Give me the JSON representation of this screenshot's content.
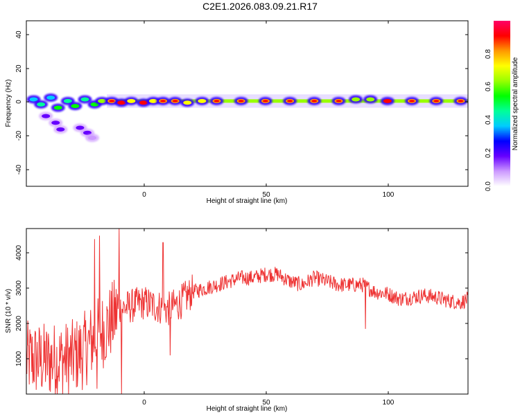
{
  "title": "C2E1.2026.083.09.21.R17",
  "chart_data": [
    {
      "type": "heatmap",
      "xlabel": "Height of straight line (km)",
      "ylabel": "Frequency (Hz)",
      "xlim": [
        -48,
        133
      ],
      "ylim": [
        -50,
        49
      ],
      "xticks": [
        "0",
        "50",
        "100"
      ],
      "yticks": [
        "40",
        "20",
        "0",
        "-20",
        "-40"
      ],
      "grid": false,
      "colorbar": {
        "label": "Normalized spectral amplitude",
        "range": [
          0,
          1
        ],
        "ticks": [
          "0.0",
          "0.2",
          "0.4",
          "0.6",
          "0.8"
        ],
        "colors": [
          "#ffffff",
          "#cc99ff",
          "#6600ff",
          "#0000ff",
          "#00ccff",
          "#00ff99",
          "#00ff00",
          "#99ff00",
          "#ffff00",
          "#ff9900",
          "#ff0000",
          "#ff0066"
        ]
      },
      "blobs": [
        {
          "x": -45,
          "y": 2,
          "v": 0.35
        },
        {
          "x": -42,
          "y": -1,
          "v": 0.45
        },
        {
          "x": -38,
          "y": 3,
          "v": 0.4
        },
        {
          "x": -35,
          "y": -3,
          "v": 0.5
        },
        {
          "x": -31,
          "y": 1,
          "v": 0.45
        },
        {
          "x": -28,
          "y": -2,
          "v": 0.55
        },
        {
          "x": -24,
          "y": 2,
          "v": 0.45
        },
        {
          "x": -20,
          "y": -1,
          "v": 0.55
        },
        {
          "x": -17,
          "y": 1,
          "v": 0.6
        },
        {
          "x": -40,
          "y": -8,
          "v": 0.2
        },
        {
          "x": -36,
          "y": -12,
          "v": 0.18
        },
        {
          "x": -34,
          "y": -16,
          "v": 0.2
        },
        {
          "x": -26,
          "y": -15,
          "v": 0.15
        },
        {
          "x": -23,
          "y": -18,
          "v": 0.15
        },
        {
          "x": -21,
          "y": -21,
          "v": 0.12
        },
        {
          "x": -13,
          "y": 1,
          "v": 0.8
        },
        {
          "x": -9,
          "y": 0,
          "v": 0.95
        },
        {
          "x": -5,
          "y": 1,
          "v": 0.7
        },
        {
          "x": 0,
          "y": 0,
          "v": 0.9
        },
        {
          "x": 4,
          "y": 1,
          "v": 0.7
        },
        {
          "x": 8,
          "y": 1,
          "v": 0.85
        },
        {
          "x": 13,
          "y": 1,
          "v": 0.85
        },
        {
          "x": 18,
          "y": 0,
          "v": 0.75
        },
        {
          "x": 24,
          "y": 1,
          "v": 0.75
        },
        {
          "x": 30,
          "y": 1,
          "v": 0.85
        },
        {
          "x": 40,
          "y": 1,
          "v": 0.85
        },
        {
          "x": 50,
          "y": 1,
          "v": 0.85
        },
        {
          "x": 60,
          "y": 1,
          "v": 0.85
        },
        {
          "x": 70,
          "y": 1,
          "v": 0.85
        },
        {
          "x": 80,
          "y": 1,
          "v": 0.8
        },
        {
          "x": 87,
          "y": 2,
          "v": 0.6
        },
        {
          "x": 93,
          "y": 2,
          "v": 0.6
        },
        {
          "x": 100,
          "y": 1,
          "v": 0.95
        },
        {
          "x": 110,
          "y": 1,
          "v": 0.85
        },
        {
          "x": 120,
          "y": 1,
          "v": 0.85
        },
        {
          "x": 130,
          "y": 1,
          "v": 0.8
        }
      ]
    },
    {
      "type": "line",
      "xlabel": "Height of straight line (km)",
      "ylabel": "SNR (10 * v/v)",
      "xlim": [
        -48,
        133
      ],
      "ylim": [
        0,
        4700
      ],
      "xticks": [
        "0",
        "50",
        "100"
      ],
      "yticks": [
        "4000",
        "3000",
        "2000",
        "1000"
      ],
      "grid": false,
      "color": "#ee3333",
      "series": [
        {
          "trend": [
            {
              "x": -48,
              "y": 1000
            },
            {
              "x": -40,
              "y": 950
            },
            {
              "x": -30,
              "y": 1000
            },
            {
              "x": -25,
              "y": 1200
            },
            {
              "x": -20,
              "y": 1600
            },
            {
              "x": -15,
              "y": 1900
            },
            {
              "x": -10,
              "y": 2400
            },
            {
              "x": -5,
              "y": 2500
            },
            {
              "x": 0,
              "y": 2600
            },
            {
              "x": 5,
              "y": 2500
            },
            {
              "x": 10,
              "y": 2400
            },
            {
              "x": 15,
              "y": 2600
            },
            {
              "x": 20,
              "y": 2900
            },
            {
              "x": 25,
              "y": 3000
            },
            {
              "x": 30,
              "y": 3100
            },
            {
              "x": 35,
              "y": 3200
            },
            {
              "x": 40,
              "y": 3300
            },
            {
              "x": 45,
              "y": 3300
            },
            {
              "x": 50,
              "y": 3400
            },
            {
              "x": 55,
              "y": 3400
            },
            {
              "x": 60,
              "y": 3200
            },
            {
              "x": 65,
              "y": 3100
            },
            {
              "x": 70,
              "y": 3300
            },
            {
              "x": 75,
              "y": 3200
            },
            {
              "x": 80,
              "y": 3100
            },
            {
              "x": 85,
              "y": 3100
            },
            {
              "x": 90,
              "y": 3100
            },
            {
              "x": 95,
              "y": 2900
            },
            {
              "x": 100,
              "y": 2850
            },
            {
              "x": 105,
              "y": 2700
            },
            {
              "x": 110,
              "y": 2750
            },
            {
              "x": 115,
              "y": 2800
            },
            {
              "x": 120,
              "y": 2750
            },
            {
              "x": 125,
              "y": 2650
            },
            {
              "x": 130,
              "y": 2600
            },
            {
              "x": 133,
              "y": 2700
            }
          ],
          "spikes": [
            {
              "x": -20,
              "y": 4400
            },
            {
              "x": -19,
              "y": 150
            },
            {
              "x": -18,
              "y": 4500
            },
            {
              "x": -10,
              "y": 4700
            },
            {
              "x": -9,
              "y": 0
            },
            {
              "x": 8,
              "y": 4300
            },
            {
              "x": 11,
              "y": 1100
            },
            {
              "x": 91,
              "y": 1850
            }
          ]
        }
      ]
    }
  ]
}
